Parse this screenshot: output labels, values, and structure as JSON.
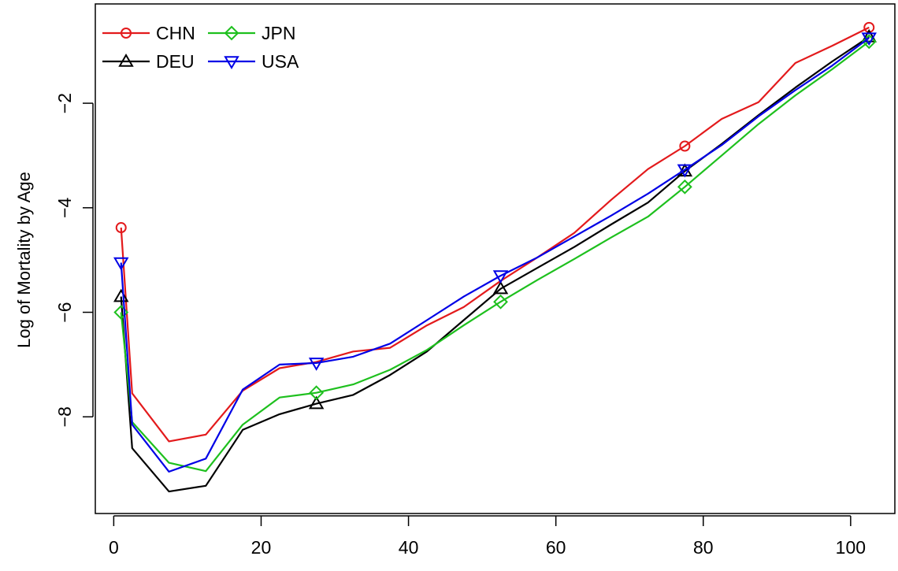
{
  "chart_data": {
    "type": "line",
    "title": "",
    "xlabel": "",
    "ylabel": "Log of Mortality by Age",
    "xlim": [
      -2.5,
      106
    ],
    "ylim": [
      -9.85,
      -0.1
    ],
    "xticks": [
      0,
      20,
      40,
      60,
      80,
      100
    ],
    "yticks": [
      -8,
      -6,
      -4,
      -2
    ],
    "ytick_labels": [
      "−8",
      "−6",
      "−4",
      "−2"
    ],
    "grid": false,
    "legend": {
      "position": "top-left",
      "columns": 2
    },
    "x": [
      1,
      2.5,
      7.5,
      12.5,
      17.5,
      22.5,
      27.5,
      32.5,
      37.5,
      42.5,
      47.5,
      52.5,
      57.5,
      62.5,
      67.5,
      72.5,
      77.5,
      82.5,
      87.5,
      92.5,
      97.5,
      102.5
    ],
    "series": [
      {
        "name": "CHN",
        "color": "#e31a1c",
        "marker": "circle",
        "marker_x": [
          1,
          77.5,
          102.5
        ],
        "values": [
          -4.38,
          -7.55,
          -8.47,
          -8.34,
          -7.5,
          -7.07,
          -6.95,
          -6.75,
          -6.68,
          -6.25,
          -5.9,
          -5.4,
          -4.95,
          -4.48,
          -3.85,
          -3.26,
          -2.82,
          -2.3,
          -1.98,
          -1.23,
          -0.9,
          -0.55
        ]
      },
      {
        "name": "DEU",
        "color": "#000000",
        "marker": "triangle-up",
        "marker_x": [
          1,
          27.5,
          52.5,
          77.5,
          102.5
        ],
        "values": [
          -5.7,
          -8.6,
          -9.43,
          -9.32,
          -8.25,
          -7.95,
          -7.75,
          -7.58,
          -7.2,
          -6.75,
          -6.15,
          -5.55,
          -5.15,
          -4.75,
          -4.32,
          -3.9,
          -3.3,
          -2.78,
          -2.23,
          -1.7,
          -1.2,
          -0.73
        ]
      },
      {
        "name": "JPN",
        "color": "#1ec01e",
        "marker": "diamond",
        "marker_x": [
          1,
          27.5,
          52.5,
          77.5,
          102.5
        ],
        "values": [
          -6.0,
          -8.1,
          -8.88,
          -9.04,
          -8.15,
          -7.63,
          -7.54,
          -7.38,
          -7.1,
          -6.72,
          -6.25,
          -5.8,
          -5.38,
          -4.98,
          -4.57,
          -4.17,
          -3.6,
          -3.0,
          -2.4,
          -1.85,
          -1.35,
          -0.82
        ]
      },
      {
        "name": "USA",
        "color": "#0000e6",
        "marker": "triangle-down",
        "marker_x": [
          1,
          27.5,
          52.5,
          77.5,
          102.5
        ],
        "values": [
          -5.05,
          -8.15,
          -9.05,
          -8.8,
          -7.48,
          -7.0,
          -6.97,
          -6.85,
          -6.6,
          -6.15,
          -5.7,
          -5.3,
          -4.95,
          -4.55,
          -4.15,
          -3.73,
          -3.27,
          -2.8,
          -2.25,
          -1.75,
          -1.28,
          -0.75
        ]
      }
    ]
  }
}
